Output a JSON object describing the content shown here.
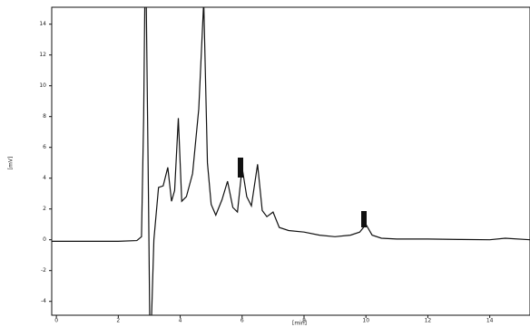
{
  "chart_data": {
    "type": "line",
    "x_label": "[min]",
    "y_label": "[mV]",
    "color": "#111111",
    "xlim": [
      -0.15,
      15.3
    ],
    "ylim": [
      -4.9,
      15.1
    ],
    "xticks": [
      0,
      2,
      4,
      6,
      8,
      10,
      12,
      14
    ],
    "yticks": [
      -4,
      -2,
      0,
      2,
      4,
      6,
      8,
      10,
      12,
      14
    ],
    "x": [
      -0.15,
      1,
      2,
      2.6,
      2.75,
      2.82,
      2.86,
      2.9,
      2.98,
      3.02,
      3.06,
      3.15,
      3.3,
      3.45,
      3.6,
      3.72,
      3.82,
      3.94,
      4.05,
      4.2,
      4.4,
      4.6,
      4.76,
      4.88,
      5.0,
      5.15,
      5.35,
      5.53,
      5.7,
      5.85,
      6.0,
      6.15,
      6.3,
      6.5,
      6.65,
      6.8,
      7.0,
      7.2,
      7.5,
      8.0,
      8.5,
      9.0,
      9.5,
      9.8,
      10.0,
      10.2,
      10.5,
      11,
      12,
      13,
      14,
      14.5,
      15.3
    ],
    "values": [
      -0.1,
      -0.1,
      -0.1,
      -0.05,
      0.2,
      8,
      16,
      16,
      2,
      -6,
      -6,
      0,
      3.4,
      3.5,
      4.7,
      2.5,
      3.2,
      7.9,
      2.5,
      2.8,
      4.3,
      8.5,
      15.5,
      5,
      2.3,
      1.6,
      2.6,
      3.8,
      2.1,
      1.8,
      4.7,
      2.8,
      2.2,
      4.9,
      1.9,
      1.5,
      1.8,
      0.8,
      0.6,
      0.5,
      0.3,
      0.2,
      0.3,
      0.5,
      1.0,
      0.3,
      0.1,
      0.05,
      0.05,
      0.02,
      0.0,
      0.1,
      0.0
    ]
  }
}
